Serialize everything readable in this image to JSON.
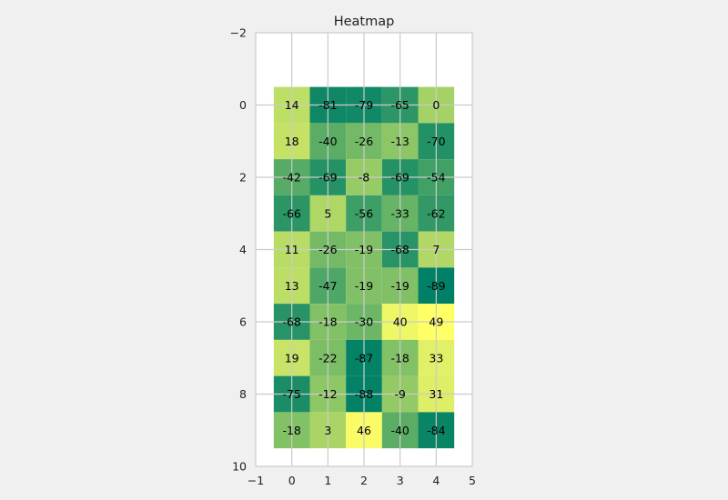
{
  "chart_data": {
    "type": "heatmap",
    "title": "Heatmap",
    "xlabel": "",
    "ylabel": "",
    "xlim": [
      -1,
      5
    ],
    "ylim": [
      10,
      -2
    ],
    "xticks": [
      "−1",
      "0",
      "1",
      "2",
      "3",
      "4",
      "5"
    ],
    "yticks": [
      "−2",
      "0",
      "2",
      "4",
      "6",
      "8",
      "10"
    ],
    "grid": true,
    "colormap": "summer",
    "colormap_range": [
      -89,
      49
    ],
    "values": [
      [
        14,
        -81,
        -79,
        -65,
        0
      ],
      [
        18,
        -40,
        -26,
        -13,
        -70
      ],
      [
        -42,
        -69,
        -8,
        -69,
        -54
      ],
      [
        -66,
        5,
        -56,
        -33,
        -62
      ],
      [
        11,
        -26,
        -19,
        -68,
        7
      ],
      [
        13,
        -47,
        -19,
        -19,
        -89
      ],
      [
        -68,
        -18,
        -30,
        40,
        49
      ],
      [
        19,
        -22,
        -87,
        -18,
        33
      ],
      [
        -75,
        -12,
        -88,
        -9,
        31
      ],
      [
        -18,
        3,
        46,
        -40,
        -84
      ]
    ]
  },
  "colors": {
    "figure_background": "#f0f0f0",
    "axes_background": "#ffffff",
    "grid": "#cbcbcb",
    "spine": "#cbcbcb",
    "cmap_low": "#008066",
    "cmap_high": "#ffff66"
  }
}
